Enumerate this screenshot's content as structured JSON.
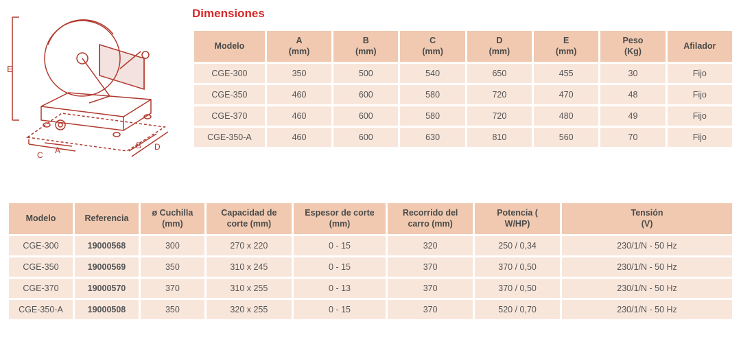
{
  "title": "Dimensiones",
  "diagram": {
    "labels": [
      "A",
      "B",
      "C",
      "D",
      "E"
    ],
    "stroke": "#c0392b"
  },
  "table1": {
    "columns": [
      "Modelo",
      "A\n(mm)",
      "B\n(mm)",
      "C\n(mm)",
      "D\n(mm)",
      "E\n(mm)",
      "Peso\n(Kg)",
      "Afilador"
    ],
    "rows": [
      [
        "CGE-300",
        "350",
        "500",
        "540",
        "650",
        "455",
        "30",
        "Fijo"
      ],
      [
        "CGE-350",
        "460",
        "600",
        "580",
        "720",
        "470",
        "48",
        "Fijo"
      ],
      [
        "CGE-370",
        "460",
        "600",
        "580",
        "720",
        "480",
        "49",
        "Fijo"
      ],
      [
        "CGE-350-A",
        "460",
        "600",
        "630",
        "810",
        "560",
        "70",
        "Fijo"
      ]
    ],
    "col_widths": [
      "12%",
      "11%",
      "11%",
      "11%",
      "11%",
      "11%",
      "11%",
      "11%"
    ]
  },
  "table2": {
    "columns": [
      "Modelo",
      "Referencia",
      "ø Cuchilla\n(mm)",
      "Capacidad de\ncorte (mm)",
      "Espesor de corte\n(mm)",
      "Recorrido del\ncarro (mm)",
      "Potencia (\nW/HP)",
      "Tensión\n(V)"
    ],
    "rows": [
      [
        "CGE-300",
        "19000568",
        "300",
        "270 x 220",
        "0 - 15",
        "320",
        "250 / 0,34",
        "230/1/N - 50 Hz"
      ],
      [
        "CGE-350",
        "19000569",
        "350",
        "310 x 245",
        "0 - 15",
        "370",
        "370 / 0,50",
        "230/1/N - 50 Hz"
      ],
      [
        "CGE-370",
        "19000570",
        "370",
        "310 x 255",
        "0 - 13",
        "370",
        "370 / 0,50",
        "230/1/N - 50 Hz"
      ],
      [
        "CGE-350-A",
        "19000508",
        "350",
        "320 x 255",
        "0 - 15",
        "370",
        "520 / 0,70",
        "230/1/N - 50 Hz"
      ]
    ],
    "col_widths": [
      "9%",
      "9%",
      "9%",
      "12%",
      "13%",
      "12%",
      "12%",
      "24%"
    ],
    "bold_cols": [
      1
    ]
  },
  "colors": {
    "header_bg": "#f0c9b0",
    "cell_bg": "#f9e6db",
    "title": "#d62828"
  }
}
